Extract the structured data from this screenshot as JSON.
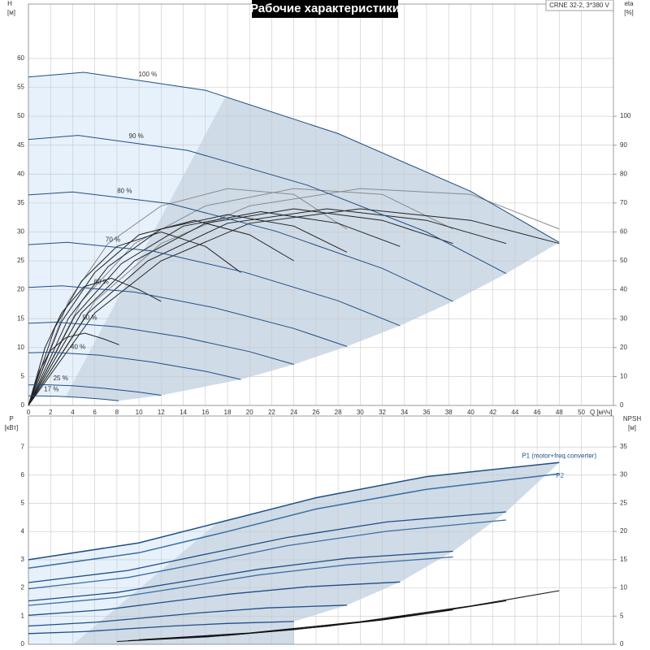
{
  "chart_data": [
    {
      "type": "line",
      "title": "Рабочие характеристики",
      "annotation": "CRNE 32-2, 3*380 V",
      "xlabel": "Q [м³/ч]",
      "ylabel": "H",
      "ylabel_unit": "[м]",
      "y2label": "eta",
      "y2label_unit": "[%]",
      "xlim": [
        0,
        52.9
      ],
      "xticks": [
        0,
        2,
        4,
        6,
        8,
        10,
        12,
        14,
        16,
        18,
        20,
        22,
        24,
        26,
        28,
        30,
        32,
        34,
        36,
        38,
        40,
        42,
        44,
        46,
        48,
        50
      ],
      "ylim": [
        0,
        69.4
      ],
      "yticks": [
        0,
        5,
        10,
        15,
        20,
        25,
        30,
        35,
        40,
        45,
        50,
        55,
        60
      ],
      "y2lim": [
        0,
        138.8
      ],
      "y2ticks": [
        0,
        10,
        20,
        30,
        40,
        50,
        60,
        70,
        80,
        90,
        100
      ],
      "grid": true,
      "series": [
        {
          "name": "100 %",
          "color": "#1f4e86",
          "x": [
            0,
            5,
            16,
            28,
            40,
            48
          ],
          "values": [
            56.8,
            57.6,
            54.5,
            47,
            37,
            28.2
          ]
        },
        {
          "name": "90 %",
          "color": "#1f4e86",
          "x": [
            0,
            4.5,
            14.4,
            25.2,
            36,
            43.2
          ],
          "values": [
            46.0,
            46.7,
            44.1,
            38.1,
            30.0,
            22.8
          ]
        },
        {
          "name": "80 %",
          "color": "#1f4e86",
          "x": [
            0,
            4,
            12.8,
            22.4,
            32,
            38.4
          ],
          "values": [
            36.4,
            36.9,
            34.9,
            30.1,
            23.7,
            18.0
          ]
        },
        {
          "name": "70 %",
          "color": "#1f4e86",
          "x": [
            0,
            3.5,
            11.2,
            19.6,
            28,
            33.6
          ],
          "values": [
            27.8,
            28.2,
            26.7,
            23.0,
            18.1,
            13.8
          ]
        },
        {
          "name": "60 %",
          "color": "#1f4e86",
          "x": [
            0,
            3,
            9.6,
            16.8,
            24,
            28.8
          ],
          "values": [
            20.4,
            20.7,
            19.6,
            16.9,
            13.3,
            10.2
          ]
        },
        {
          "name": "50 %",
          "color": "#1f4e86",
          "x": [
            0,
            2.5,
            8,
            14,
            20,
            24
          ],
          "values": [
            14.2,
            14.4,
            13.6,
            11.8,
            9.3,
            7.1
          ]
        },
        {
          "name": "40 %",
          "color": "#1f4e86",
          "x": [
            0,
            2,
            6.4,
            11.2,
            16,
            19.2
          ],
          "values": [
            9.1,
            9.2,
            8.7,
            7.5,
            5.9,
            4.5
          ]
        },
        {
          "name": "25 %",
          "color": "#1f4e86",
          "x": [
            0,
            1.25,
            4,
            7,
            10,
            12
          ],
          "values": [
            3.55,
            3.6,
            3.41,
            2.94,
            2.31,
            1.76
          ]
        },
        {
          "name": "17 %",
          "color": "#1f4e86",
          "x": [
            0,
            0.85,
            2.72,
            4.76,
            6.8,
            8.16
          ],
          "values": [
            1.64,
            1.66,
            1.58,
            1.36,
            1.07,
            0.81
          ]
        }
      ],
      "efficiency": [
        {
          "color": "#8a8a8a",
          "axis": "y2",
          "x": [
            0,
            6,
            12,
            20,
            30,
            40,
            48
          ],
          "values": [
            0,
            36,
            56,
            69,
            75,
            73,
            61
          ]
        },
        {
          "color": "#8a8a8a",
          "axis": "y2",
          "x": [
            0,
            4.8,
            9.6,
            16,
            24,
            32,
            38.4
          ],
          "values": [
            0,
            36,
            56,
            69,
            75,
            73,
            61
          ]
        },
        {
          "color": "#8a8a8a",
          "axis": "y2",
          "x": [
            0,
            3.6,
            7.2,
            12,
            18,
            24,
            28.8
          ],
          "values": [
            0,
            36,
            56,
            69,
            75,
            73,
            61
          ]
        },
        {
          "color": "#222222",
          "axis": "y2",
          "x": [
            0,
            6,
            12,
            20,
            30,
            40,
            48
          ],
          "values": [
            0,
            32,
            50,
            63,
            68,
            64,
            56
          ]
        },
        {
          "color": "#222222",
          "axis": "y2",
          "x": [
            0,
            5.4,
            10.8,
            18,
            27,
            36,
            43.2
          ],
          "values": [
            0,
            32,
            50,
            63,
            68,
            64,
            56
          ]
        },
        {
          "color": "#222222",
          "axis": "y2",
          "x": [
            0,
            4.8,
            9.6,
            16,
            24,
            32,
            38.4
          ],
          "values": [
            0,
            32,
            50,
            63,
            68,
            64,
            56
          ]
        },
        {
          "color": "#222222",
          "axis": "y2",
          "x": [
            0,
            4.2,
            8.4,
            14,
            21,
            28,
            33.6
          ],
          "values": [
            0,
            31,
            49,
            62,
            67,
            63,
            55
          ]
        },
        {
          "color": "#222222",
          "axis": "y2",
          "x": [
            0,
            3.6,
            7.2,
            12,
            18,
            24,
            28.8
          ],
          "values": [
            0,
            30,
            48,
            61,
            66,
            62,
            53
          ]
        },
        {
          "color": "#222222",
          "axis": "y2",
          "x": [
            0,
            3,
            6,
            10,
            15,
            20,
            24
          ],
          "values": [
            0,
            29,
            46,
            59,
            64,
            59,
            50
          ]
        },
        {
          "color": "#222222",
          "axis": "y2",
          "x": [
            0,
            2.4,
            4.8,
            8,
            12,
            16,
            19.2
          ],
          "values": [
            0,
            27,
            43,
            55,
            60,
            55,
            46
          ]
        },
        {
          "color": "#222222",
          "axis": "y2",
          "x": [
            0,
            1.5,
            3,
            5,
            7.5,
            10,
            12
          ],
          "values": [
            0,
            20,
            32,
            41,
            44,
            40,
            36
          ]
        },
        {
          "color": "#222222",
          "axis": "y2",
          "x": [
            0,
            1,
            2,
            3.4,
            5.1,
            6.8,
            8.2
          ],
          "values": [
            0,
            12,
            19,
            23.5,
            25,
            23,
            21
          ]
        }
      ]
    },
    {
      "type": "line",
      "ylabel": "P",
      "ylabel_unit": "[кВт]",
      "y2label": "NPSH",
      "y2label_unit": "[м]",
      "ylim": [
        0,
        8.1
      ],
      "yticks": [
        0,
        1,
        2,
        3,
        4,
        5,
        6,
        7
      ],
      "y2lim": [
        0,
        40.45
      ],
      "y2ticks": [
        0,
        5,
        10,
        15,
        20,
        25,
        30,
        35
      ],
      "series": [
        {
          "name": "P1 (motor+freq.converter)",
          "color": "#1f4e86",
          "x": [
            0,
            10,
            18,
            26,
            36,
            48
          ],
          "values": [
            3.0,
            3.6,
            4.4,
            5.2,
            5.95,
            6.45
          ]
        },
        {
          "name": "P2",
          "color": "#3a6ea5",
          "x": [
            0,
            10,
            18,
            26,
            36,
            48
          ],
          "values": [
            2.7,
            3.25,
            4.0,
            4.8,
            5.5,
            6.05
          ]
        }
      ],
      "power": [
        {
          "color": "#1f4e86",
          "x": [
            0,
            9,
            16.2,
            23.4,
            32.4,
            43.2
          ],
          "values": [
            2.19,
            2.62,
            3.21,
            3.79,
            4.34,
            4.7
          ]
        },
        {
          "color": "#3a6ea5",
          "x": [
            0,
            9,
            16.2,
            23.4,
            32.4,
            43.2
          ],
          "values": [
            1.97,
            2.37,
            2.92,
            3.5,
            4.01,
            4.41
          ]
        },
        {
          "color": "#1f4e86",
          "x": [
            0,
            8,
            14.4,
            20.8,
            28.8,
            38.4
          ],
          "values": [
            1.54,
            1.84,
            2.25,
            2.66,
            3.05,
            3.3
          ]
        },
        {
          "color": "#3a6ea5",
          "x": [
            0,
            8,
            14.4,
            20.8,
            28.8,
            38.4
          ],
          "values": [
            1.38,
            1.66,
            2.05,
            2.46,
            2.82,
            3.1
          ]
        },
        {
          "color": "#1f4e86",
          "x": [
            0,
            7,
            12.6,
            18.2,
            25.2,
            33.6
          ],
          "values": [
            1.03,
            1.23,
            1.51,
            1.78,
            2.04,
            2.21
          ]
        },
        {
          "color": "#1f4e86",
          "x": [
            0,
            6,
            10.8,
            15.6,
            21.6,
            28.8
          ],
          "values": [
            0.65,
            0.78,
            0.95,
            1.12,
            1.29,
            1.39
          ]
        },
        {
          "color": "#1f4e86",
          "x": [
            0,
            5,
            9,
            13,
            18,
            24
          ],
          "values": [
            0.38,
            0.45,
            0.55,
            0.65,
            0.74,
            0.81
          ]
        }
      ],
      "npsh": [
        {
          "color": "#111111",
          "axis": "y2",
          "x": [
            10,
            20,
            30,
            40,
            48
          ],
          "values": [
            0.8,
            2.0,
            4.0,
            6.8,
            9.5
          ]
        },
        {
          "color": "#111111",
          "axis": "y2",
          "x": [
            9,
            18,
            27,
            36,
            43.2
          ],
          "values": [
            0.65,
            1.6,
            3.2,
            5.5,
            7.7
          ]
        },
        {
          "color": "#111111",
          "axis": "y2",
          "x": [
            8,
            16,
            24,
            32,
            38.4
          ],
          "values": [
            0.5,
            1.3,
            2.6,
            4.3,
            6.1
          ]
        }
      ]
    }
  ]
}
